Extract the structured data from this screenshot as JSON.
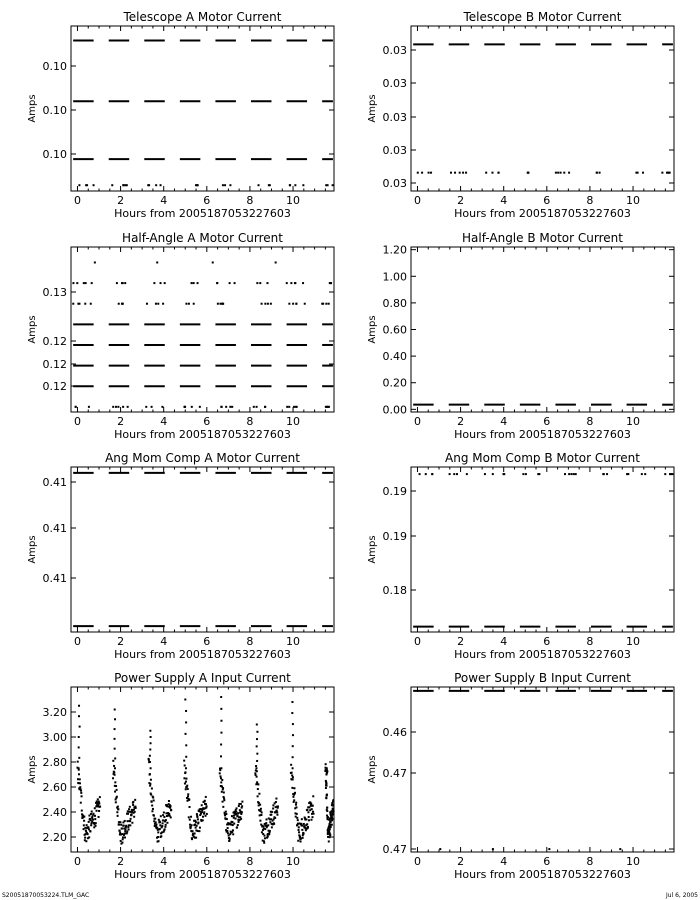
{
  "footer": {
    "left": "S20051870053224.TLM_GAC",
    "right": "Jul  6, 2005"
  },
  "chart_data": [
    {
      "type": "scatter",
      "title": "Telescope A Motor Current",
      "xlabel": "Hours from 2005187053227603",
      "ylabel": "Amps",
      "xlim": [
        -0.3,
        11.9
      ],
      "x_ticks": [
        0,
        2,
        4,
        6,
        8,
        10
      ],
      "y_tick_labels": [
        "0.10",
        "0.10",
        "0.10"
      ],
      "bands": [
        {
          "level": 0.1051,
          "style": "dense"
        },
        {
          "level": 0.103,
          "style": "dense"
        },
        {
          "level": 0.101,
          "style": "dense"
        },
        {
          "level": 0.1001,
          "style": "sparse"
        }
      ],
      "ylim": [
        0.0999,
        0.1056
      ]
    },
    {
      "type": "scatter",
      "title": "Telescope B Motor Current",
      "xlabel": "Hours from 2005187053227603",
      "ylabel": "Amps",
      "xlim": [
        -0.3,
        11.9
      ],
      "x_ticks": [
        0,
        2,
        4,
        6,
        8,
        10
      ],
      "y_tick_labels": [
        "0.03",
        "0.03",
        "0.03",
        "0.03",
        "0.03"
      ],
      "bands": [
        {
          "level": 0.0355,
          "style": "dense"
        },
        {
          "level": 0.0341,
          "style": "sparse"
        }
      ],
      "ylim": [
        0.0339,
        0.0357
      ]
    },
    {
      "type": "scatter",
      "title": "Half-Angle A Motor Current",
      "xlabel": "Hours from 2005187053227603",
      "ylabel": "Amps",
      "xlim": [
        -0.3,
        11.9
      ],
      "x_ticks": [
        0,
        2,
        4,
        6,
        8,
        10
      ],
      "y_tick_labels": [
        "0.13",
        "0.12",
        "0.12",
        "0.12"
      ],
      "bands": [
        {
          "level": 0.133,
          "style": "rare"
        },
        {
          "level": 0.131,
          "style": "sparse"
        },
        {
          "level": 0.129,
          "style": "sparse"
        },
        {
          "level": 0.127,
          "style": "dense"
        },
        {
          "level": 0.125,
          "style": "dense"
        },
        {
          "level": 0.123,
          "style": "dense"
        },
        {
          "level": 0.121,
          "style": "dense"
        },
        {
          "level": 0.119,
          "style": "sparse"
        }
      ],
      "ylim": [
        0.1185,
        0.1345
      ]
    },
    {
      "type": "scatter",
      "title": "Half-Angle B Motor Current",
      "xlabel": "Hours from 2005187053227603",
      "ylabel": "Amps",
      "xlim": [
        -0.3,
        11.9
      ],
      "x_ticks": [
        0,
        2,
        4,
        6,
        8,
        10
      ],
      "y_tick_labels": [
        "0.00",
        "0.20",
        "0.40",
        "0.60",
        "0.80",
        "1.00",
        "1.20"
      ],
      "bands": [
        {
          "level": 0.035,
          "style": "dense"
        }
      ],
      "ylim": [
        -0.02,
        1.22
      ]
    },
    {
      "type": "scatter",
      "title": "Ang Mom Comp A Motor Current",
      "xlabel": "Hours from 2005187053227603",
      "ylabel": "Amps",
      "xlim": [
        -0.3,
        11.9
      ],
      "x_ticks": [
        0,
        2,
        4,
        6,
        8,
        10
      ],
      "y_tick_labels": [
        "0.41",
        "0.41",
        "0.41"
      ],
      "bands": [
        {
          "level": 0.4153,
          "style": "dense"
        },
        {
          "level": 0.4101,
          "style": "dense"
        }
      ],
      "ylim": [
        0.4099,
        0.4155
      ]
    },
    {
      "type": "scatter",
      "title": "Ang Mom Comp B Motor Current",
      "xlabel": "Hours from 2005187053227603",
      "ylabel": "Amps",
      "xlim": [
        -0.3,
        11.9
      ],
      "x_ticks": [
        0,
        2,
        4,
        6,
        8,
        10
      ],
      "y_tick_labels": [
        "0.19",
        "0.19",
        "0.18"
      ],
      "bands": [
        {
          "level": 0.1863,
          "style": "sparse"
        },
        {
          "level": 0.1777,
          "style": "dense"
        }
      ],
      "ylim": [
        0.1774,
        0.1867
      ]
    },
    {
      "type": "scatter",
      "title": "Power Supply A Input Current",
      "xlabel": "Hours from 2005187053227603",
      "ylabel": "Amps",
      "xlim": [
        -0.3,
        11.9
      ],
      "x_ticks": [
        0,
        2,
        4,
        6,
        8,
        10
      ],
      "y_ticks": [
        2.2,
        2.4,
        2.6,
        2.8,
        3.0,
        3.2
      ],
      "y_tick_labels": [
        "2.20",
        "2.40",
        "2.60",
        "2.80",
        "3.00",
        "3.20"
      ],
      "cycle": {
        "start_hours": [
          0.0,
          1.65,
          3.3,
          4.95,
          6.6,
          8.25,
          9.9,
          11.5
        ],
        "period_hours": 1.65,
        "peak_amps": 2.75,
        "minimum_amps": 2.22,
        "recovery_amps": 2.45,
        "outlier_peaks_amps": [
          3.25,
          3.22,
          3.05,
          3.3,
          3.32,
          3.1,
          3.28,
          2.7
        ]
      },
      "ylim": [
        2.08,
        3.4
      ]
    },
    {
      "type": "scatter",
      "title": "Power Supply B Input Current",
      "xlabel": "Hours from 2005187053227603",
      "ylabel": "Amps",
      "xlim": [
        -0.3,
        11.9
      ],
      "x_ticks": [
        0,
        2,
        4,
        6,
        8,
        10
      ],
      "y_tick_labels": [
        "0.46",
        "0.47",
        "0.47"
      ],
      "bands": [
        {
          "level": 0.4738,
          "style": "dense"
        },
        {
          "level": 0.4575,
          "style": "rare"
        }
      ],
      "ylim": [
        0.4572,
        0.4742
      ]
    }
  ]
}
